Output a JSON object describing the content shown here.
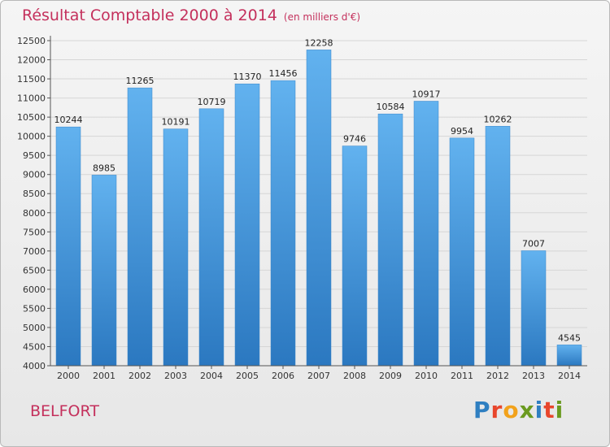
{
  "title": "Résultat Comptable 2000 à 2014",
  "unit": "(en milliers d'€)",
  "location": "BELFORT",
  "logo": {
    "text": "Proxiti",
    "colors": [
      "#2f7fc1",
      "#e8462c",
      "#f2a21b",
      "#6a9a1f",
      "#2f7fc1",
      "#e8462c",
      "#6a9a1f"
    ]
  },
  "colors": {
    "bar": "#4a9fe0",
    "bar_light": "#62b2ef",
    "bar_dark": "#2b78c0",
    "title": "#c4305c",
    "grid": "#d6d6d6",
    "axis": "#555555"
  },
  "chart_data": {
    "type": "bar",
    "title": "Résultat Comptable 2000 à 2014",
    "subtitle": "(en milliers d'€)",
    "categories": [
      "2000",
      "2001",
      "2002",
      "2003",
      "2004",
      "2005",
      "2006",
      "2007",
      "2008",
      "2009",
      "2010",
      "2011",
      "2012",
      "2013",
      "2014"
    ],
    "values": [
      10244,
      8985,
      11265,
      10191,
      10719,
      11370,
      11456,
      12258,
      9746,
      10584,
      10917,
      9954,
      10262,
      7007,
      4545
    ],
    "data_labels": [
      "10244",
      "8985",
      "11265",
      "10191",
      "10719",
      "11370",
      "11456",
      "12258",
      "9746",
      "10584",
      "10917",
      "9954",
      "10262",
      "7007",
      "4545"
    ],
    "yticks": [
      4000,
      4500,
      5000,
      5500,
      6000,
      6500,
      7000,
      7500,
      8000,
      8500,
      9000,
      9500,
      10000,
      10500,
      11000,
      11500,
      12000,
      12500
    ],
    "ylim": [
      4000,
      12500
    ],
    "xlabel": "",
    "ylabel": "",
    "grid": true,
    "legend": "none"
  }
}
